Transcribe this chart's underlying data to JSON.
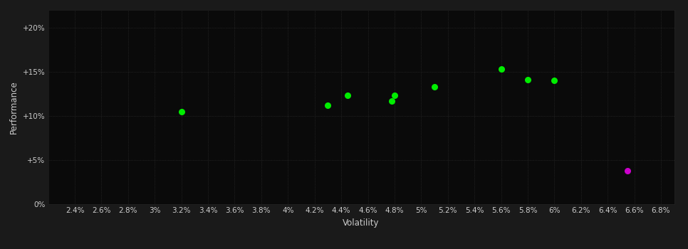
{
  "background_color": "#1a1a1a",
  "plot_bg_color": "#0a0a0a",
  "grid_color": "#333333",
  "text_color": "#cccccc",
  "green_dots": [
    [
      3.2,
      10.5
    ],
    [
      4.3,
      11.2
    ],
    [
      4.45,
      12.3
    ],
    [
      4.8,
      12.3
    ],
    [
      4.78,
      11.7
    ],
    [
      5.1,
      13.3
    ],
    [
      5.6,
      15.3
    ],
    [
      5.8,
      14.1
    ],
    [
      6.0,
      14.0
    ]
  ],
  "magenta_dots": [
    [
      6.55,
      3.8
    ]
  ],
  "green_color": "#00ee00",
  "magenta_color": "#cc00cc",
  "xlabel": "Volatility",
  "ylabel": "Performance",
  "xlim": [
    2.2,
    6.9
  ],
  "ylim": [
    0,
    22
  ],
  "xticks": [
    2.4,
    2.6,
    2.8,
    3.0,
    3.2,
    3.4,
    3.6,
    3.8,
    4.0,
    4.2,
    4.4,
    4.6,
    4.8,
    5.0,
    5.2,
    5.4,
    5.6,
    5.8,
    6.0,
    6.2,
    6.4,
    6.6,
    6.8
  ],
  "yticks": [
    0,
    5,
    10,
    15,
    20
  ],
  "ytick_labels": [
    "0%",
    "+5%",
    "+10%",
    "+15%",
    "+20%"
  ],
  "xtick_labels": [
    "2.4%",
    "2.6%",
    "2.8%",
    "3%",
    "3.2%",
    "3.4%",
    "3.6%",
    "3.8%",
    "4%",
    "4.2%",
    "4.4%",
    "4.6%",
    "4.8%",
    "5%",
    "5.2%",
    "5.4%",
    "5.6%",
    "5.8%",
    "6%",
    "6.2%",
    "6.4%",
    "6.6%",
    "6.8%"
  ],
  "dot_size": 30,
  "font_size_ticks": 7.5,
  "font_size_labels": 8.5
}
